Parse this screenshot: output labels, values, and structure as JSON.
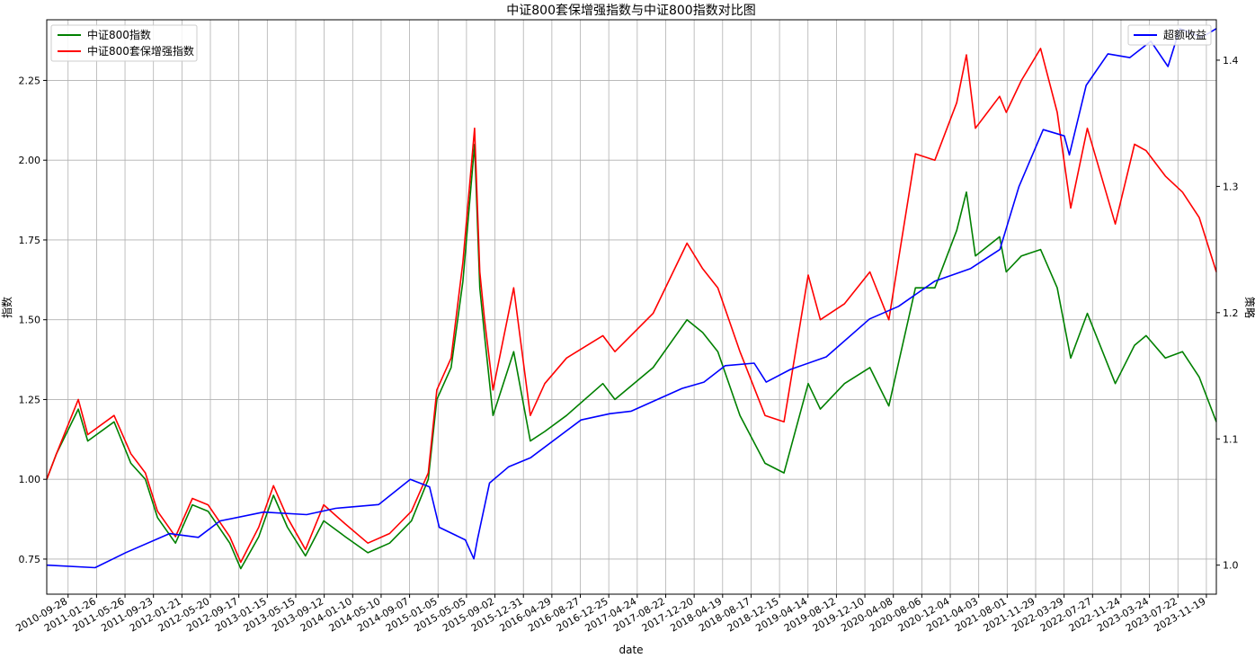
{
  "chart_data": {
    "type": "line",
    "title": "中证800套保增强指数与中证800指数对比图",
    "xlabel": "date",
    "ylabel_left": "指数",
    "ylabel_right": "策略",
    "ylim_left": [
      0.64,
      2.44
    ],
    "ylim_right": [
      0.977,
      1.432
    ],
    "y_ticks_left": [
      "0.75",
      "1.00",
      "1.25",
      "1.50",
      "1.75",
      "2.00",
      "2.25"
    ],
    "y_ticks_right": [
      "1.0",
      "1.1",
      "1.2",
      "1.3",
      "1.4"
    ],
    "x_ticks": [
      "2010-09-28",
      "2011-01-26",
      "2011-05-26",
      "2011-09-23",
      "2012-01-21",
      "2012-05-20",
      "2012-09-17",
      "2013-01-15",
      "2013-05-15",
      "2013-09-12",
      "2014-01-10",
      "2014-05-10",
      "2014-09-07",
      "2015-01-05",
      "2015-05-05",
      "2015-09-02",
      "2015-12-31",
      "2016-04-29",
      "2016-08-27",
      "2016-12-25",
      "2017-04-24",
      "2017-08-22",
      "2017-12-20",
      "2018-04-19",
      "2018-08-17",
      "2018-12-15",
      "2019-04-14",
      "2019-08-12",
      "2019-12-10",
      "2020-04-08",
      "2020-08-06",
      "2020-12-04",
      "2021-04-03",
      "2021-08-01",
      "2021-11-29",
      "2022-03-29",
      "2022-07-27",
      "2022-11-24",
      "2023-03-24",
      "2023-07-22",
      "2023-11-19"
    ],
    "x_range": [
      "2010-06-30",
      "2023-12-31"
    ],
    "grid": true,
    "legend_left": "top-left",
    "legend_right": "top-right",
    "series": [
      {
        "name": "中证800指数",
        "axis": "left",
        "color": "#008000",
        "points": [
          [
            "2010-06-30",
            1.0
          ],
          [
            "2010-08-10",
            1.08
          ],
          [
            "2010-11-10",
            1.22
          ],
          [
            "2010-12-20",
            1.12
          ],
          [
            "2011-04-10",
            1.18
          ],
          [
            "2011-06-20",
            1.05
          ],
          [
            "2011-08-20",
            1.0
          ],
          [
            "2011-10-10",
            0.88
          ],
          [
            "2011-12-25",
            0.8
          ],
          [
            "2012-03-05",
            0.92
          ],
          [
            "2012-05-10",
            0.9
          ],
          [
            "2012-08-10",
            0.8
          ],
          [
            "2012-09-25",
            0.72
          ],
          [
            "2012-12-10",
            0.82
          ],
          [
            "2013-02-10",
            0.95
          ],
          [
            "2013-04-10",
            0.85
          ],
          [
            "2013-06-25",
            0.76
          ],
          [
            "2013-09-10",
            0.87
          ],
          [
            "2013-12-10",
            0.82
          ],
          [
            "2014-03-15",
            0.77
          ],
          [
            "2014-06-15",
            0.8
          ],
          [
            "2014-09-15",
            0.87
          ],
          [
            "2014-11-25",
            1.0
          ],
          [
            "2014-12-31",
            1.25
          ],
          [
            "2015-03-01",
            1.35
          ],
          [
            "2015-04-20",
            1.62
          ],
          [
            "2015-06-08",
            2.05
          ],
          [
            "2015-06-30",
            1.6
          ],
          [
            "2015-07-20",
            1.45
          ],
          [
            "2015-08-25",
            1.2
          ],
          [
            "2015-11-20",
            1.4
          ],
          [
            "2016-01-29",
            1.12
          ],
          [
            "2016-03-30",
            1.15
          ],
          [
            "2016-06-30",
            1.2
          ],
          [
            "2016-11-30",
            1.3
          ],
          [
            "2017-01-20",
            1.25
          ],
          [
            "2017-06-30",
            1.35
          ],
          [
            "2017-11-20",
            1.5
          ],
          [
            "2018-01-25",
            1.46
          ],
          [
            "2018-03-30",
            1.4
          ],
          [
            "2018-07-01",
            1.2
          ],
          [
            "2018-10-15",
            1.05
          ],
          [
            "2019-01-03",
            1.02
          ],
          [
            "2019-04-15",
            1.3
          ],
          [
            "2019-06-05",
            1.22
          ],
          [
            "2019-09-15",
            1.3
          ],
          [
            "2019-12-31",
            1.35
          ],
          [
            "2020-03-20",
            1.23
          ],
          [
            "2020-07-10",
            1.6
          ],
          [
            "2020-09-30",
            1.6
          ],
          [
            "2020-12-31",
            1.78
          ],
          [
            "2021-02-10",
            1.9
          ],
          [
            "2021-03-20",
            1.7
          ],
          [
            "2021-06-30",
            1.76
          ],
          [
            "2021-07-28",
            1.65
          ],
          [
            "2021-09-30",
            1.7
          ],
          [
            "2021-12-20",
            1.72
          ],
          [
            "2022-02-28",
            1.6
          ],
          [
            "2022-04-26",
            1.38
          ],
          [
            "2022-07-05",
            1.52
          ],
          [
            "2022-10-31",
            1.3
          ],
          [
            "2023-01-20",
            1.42
          ],
          [
            "2023-03-10",
            1.45
          ],
          [
            "2023-05-30",
            1.38
          ],
          [
            "2023-08-10",
            1.4
          ],
          [
            "2023-10-20",
            1.32
          ],
          [
            "2023-12-31",
            1.18
          ]
        ]
      },
      {
        "name": "中证800套保增强指数",
        "axis": "left",
        "color": "#ff0000",
        "points": [
          [
            "2010-06-30",
            1.0
          ],
          [
            "2010-08-10",
            1.08
          ],
          [
            "2010-11-10",
            1.25
          ],
          [
            "2010-12-20",
            1.14
          ],
          [
            "2011-04-10",
            1.2
          ],
          [
            "2011-06-20",
            1.08
          ],
          [
            "2011-08-20",
            1.02
          ],
          [
            "2011-10-10",
            0.9
          ],
          [
            "2011-12-25",
            0.82
          ],
          [
            "2012-03-05",
            0.94
          ],
          [
            "2012-05-10",
            0.92
          ],
          [
            "2012-08-10",
            0.82
          ],
          [
            "2012-09-25",
            0.74
          ],
          [
            "2012-12-10",
            0.85
          ],
          [
            "2013-02-10",
            0.98
          ],
          [
            "2013-04-10",
            0.88
          ],
          [
            "2013-06-25",
            0.78
          ],
          [
            "2013-09-10",
            0.92
          ],
          [
            "2013-12-10",
            0.86
          ],
          [
            "2014-03-15",
            0.8
          ],
          [
            "2014-06-15",
            0.83
          ],
          [
            "2014-09-15",
            0.9
          ],
          [
            "2014-11-25",
            1.02
          ],
          [
            "2014-12-31",
            1.28
          ],
          [
            "2015-03-01",
            1.38
          ],
          [
            "2015-04-20",
            1.68
          ],
          [
            "2015-06-08",
            2.1
          ],
          [
            "2015-06-30",
            1.65
          ],
          [
            "2015-07-20",
            1.5
          ],
          [
            "2015-08-25",
            1.28
          ],
          [
            "2015-11-20",
            1.6
          ],
          [
            "2016-01-29",
            1.2
          ],
          [
            "2016-03-30",
            1.3
          ],
          [
            "2016-06-30",
            1.38
          ],
          [
            "2016-11-30",
            1.45
          ],
          [
            "2017-01-20",
            1.4
          ],
          [
            "2017-06-30",
            1.52
          ],
          [
            "2017-11-20",
            1.74
          ],
          [
            "2018-01-25",
            1.66
          ],
          [
            "2018-03-30",
            1.6
          ],
          [
            "2018-07-01",
            1.4
          ],
          [
            "2018-10-15",
            1.2
          ],
          [
            "2019-01-03",
            1.18
          ],
          [
            "2019-04-15",
            1.64
          ],
          [
            "2019-06-05",
            1.5
          ],
          [
            "2019-09-15",
            1.55
          ],
          [
            "2019-12-31",
            1.65
          ],
          [
            "2020-03-20",
            1.5
          ],
          [
            "2020-07-10",
            2.02
          ],
          [
            "2020-09-30",
            2.0
          ],
          [
            "2020-12-31",
            2.18
          ],
          [
            "2021-02-10",
            2.33
          ],
          [
            "2021-03-20",
            2.1
          ],
          [
            "2021-06-30",
            2.2
          ],
          [
            "2021-07-28",
            2.15
          ],
          [
            "2021-09-30",
            2.25
          ],
          [
            "2021-12-20",
            2.35
          ],
          [
            "2022-02-28",
            2.15
          ],
          [
            "2022-04-26",
            1.85
          ],
          [
            "2022-07-05",
            2.1
          ],
          [
            "2022-10-31",
            1.8
          ],
          [
            "2023-01-20",
            2.05
          ],
          [
            "2023-03-10",
            2.03
          ],
          [
            "2023-05-30",
            1.95
          ],
          [
            "2023-08-10",
            1.9
          ],
          [
            "2023-10-20",
            1.82
          ],
          [
            "2023-12-31",
            1.65
          ]
        ]
      },
      {
        "name": "超额收益",
        "axis": "right",
        "color": "#0000ff",
        "points": [
          [
            "2010-06-30",
            1.0
          ],
          [
            "2011-01-20",
            0.998
          ],
          [
            "2011-05-30",
            1.01
          ],
          [
            "2011-11-30",
            1.025
          ],
          [
            "2012-03-30",
            1.022
          ],
          [
            "2012-06-30",
            1.035
          ],
          [
            "2012-12-30",
            1.042
          ],
          [
            "2013-06-30",
            1.04
          ],
          [
            "2013-10-30",
            1.045
          ],
          [
            "2014-04-30",
            1.048
          ],
          [
            "2014-09-10",
            1.068
          ],
          [
            "2014-11-30",
            1.062
          ],
          [
            "2015-01-10",
            1.03
          ],
          [
            "2015-04-30",
            1.02
          ],
          [
            "2015-06-05",
            1.005
          ],
          [
            "2015-06-20",
            1.02
          ],
          [
            "2015-08-10",
            1.065
          ],
          [
            "2015-10-30",
            1.078
          ],
          [
            "2016-01-30",
            1.085
          ],
          [
            "2016-08-30",
            1.115
          ],
          [
            "2016-12-30",
            1.12
          ],
          [
            "2017-03-30",
            1.122
          ],
          [
            "2017-10-30",
            1.14
          ],
          [
            "2018-01-30",
            1.145
          ],
          [
            "2018-04-30",
            1.158
          ],
          [
            "2018-08-30",
            1.16
          ],
          [
            "2018-10-20",
            1.145
          ],
          [
            "2019-01-30",
            1.155
          ],
          [
            "2019-06-30",
            1.165
          ],
          [
            "2019-12-30",
            1.195
          ],
          [
            "2020-04-30",
            1.205
          ],
          [
            "2020-09-30",
            1.225
          ],
          [
            "2021-02-28",
            1.235
          ],
          [
            "2021-07-01",
            1.25
          ],
          [
            "2021-09-20",
            1.3
          ],
          [
            "2021-12-31",
            1.345
          ],
          [
            "2022-03-30",
            1.34
          ],
          [
            "2022-04-20",
            1.325
          ],
          [
            "2022-06-30",
            1.38
          ],
          [
            "2022-09-30",
            1.405
          ],
          [
            "2022-12-31",
            1.402
          ],
          [
            "2023-03-30",
            1.415
          ],
          [
            "2023-06-10",
            1.395
          ],
          [
            "2023-07-30",
            1.425
          ],
          [
            "2023-10-30",
            1.418
          ],
          [
            "2023-12-31",
            1.425
          ]
        ]
      }
    ]
  }
}
